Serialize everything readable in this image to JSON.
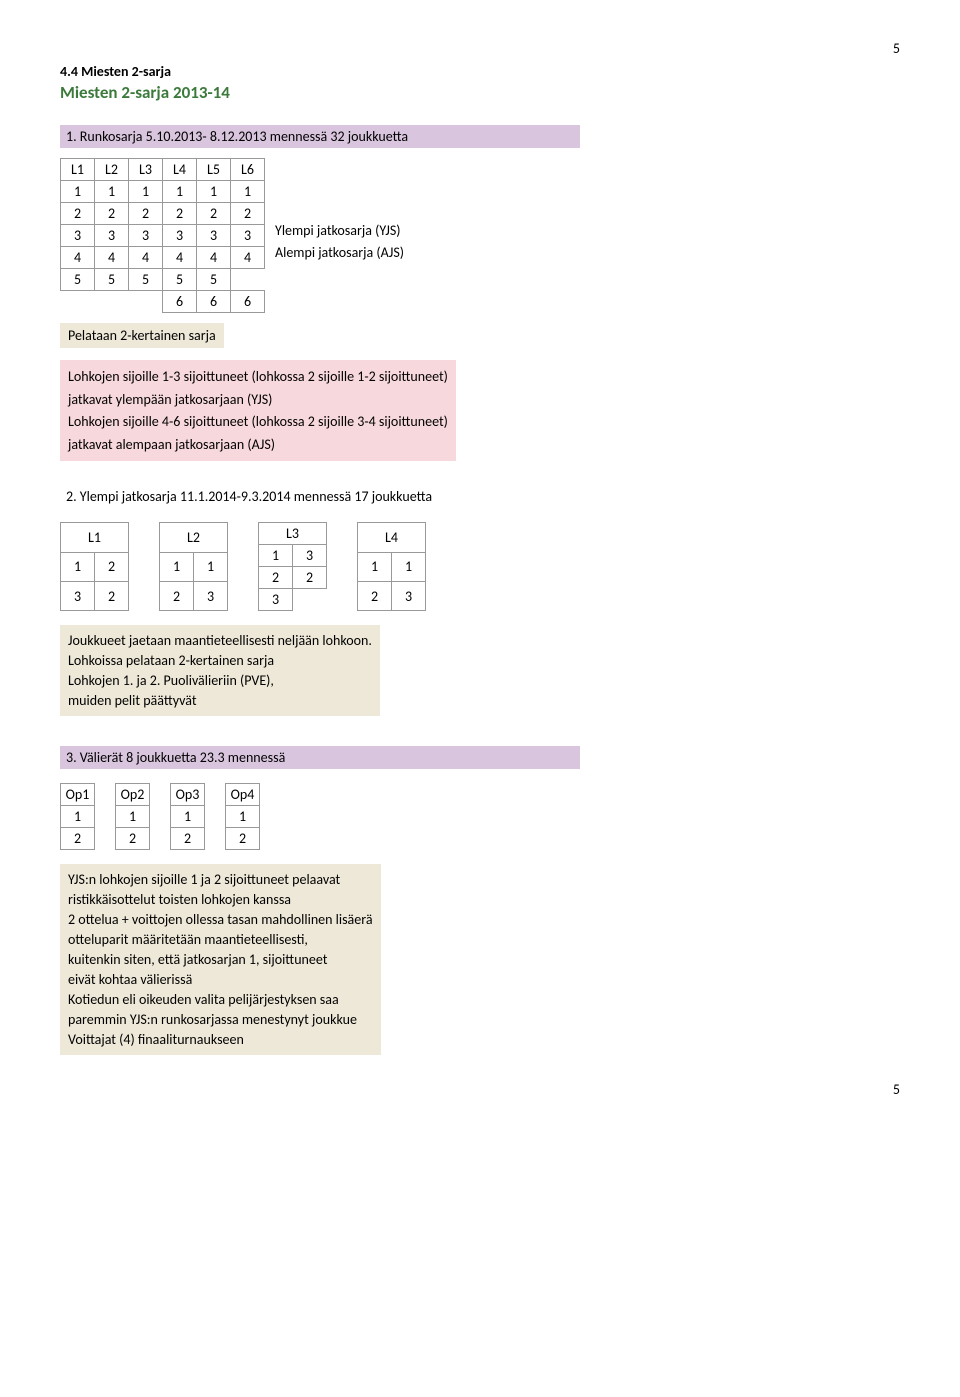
{
  "page_number_top": "5",
  "page_number_bottom": "5",
  "h1": "4.4 Miesten 2-sarja",
  "h2": "Miesten 2-sarja  2013-14",
  "section1": {
    "title": "1. Runkosarja 5.10.2013- 8.12.2013 mennessä 32 joukkuetta",
    "headers": [
      "L1",
      "L2",
      "L3",
      "L4",
      "L5",
      "L6"
    ],
    "rows": [
      [
        "1",
        "1",
        "1",
        "1",
        "1",
        "1"
      ],
      [
        "2",
        "2",
        "2",
        "2",
        "2",
        "2"
      ],
      [
        "3",
        "3",
        "3",
        "3",
        "3",
        "3"
      ],
      [
        "4",
        "4",
        "4",
        "4",
        "4",
        "4"
      ],
      [
        "5",
        "5",
        "5",
        "5",
        "5",
        ""
      ],
      [
        "",
        "",
        "",
        "6",
        "6",
        "6"
      ]
    ],
    "side": [
      "",
      "",
      "Ylempi jatkosarja (YJS)",
      "Alempi jatkosarja (AJS)",
      "",
      ""
    ],
    "beige": "Pelataan 2-kertainen sarja",
    "pink": [
      "Lohkojen sijoille 1-3 sijoittuneet (lohkossa 2 sijoille 1-2 sijoittuneet)",
      "jatkavat ylempään jatkosarjaan (YJS)",
      "Lohkojen sijoille 4-6 sijoittuneet (lohkossa 2 sijoille 3-4 sijoittuneet)",
      "jatkavat alempaan jatkosarjaan (AJS)"
    ]
  },
  "section2": {
    "title": "2. Ylempi jatkosarja 11.1.2014-9.3.2014 mennessä 17 joukkuetta",
    "tables": [
      {
        "header": "L1",
        "rows": [
          [
            "1",
            "2"
          ],
          [
            "3",
            "2"
          ]
        ],
        "extra": null
      },
      {
        "header": "L2",
        "rows": [
          [
            "1",
            "1"
          ],
          [
            "2",
            "3"
          ]
        ],
        "extra": null
      },
      {
        "header": "L3",
        "rows": [
          [
            "1",
            "3"
          ],
          [
            "2",
            "2"
          ]
        ],
        "extra": "3"
      },
      {
        "header": "L4",
        "rows": [
          [
            "1",
            "1"
          ],
          [
            "2",
            "3"
          ]
        ],
        "extra": null
      }
    ],
    "beige": [
      "Joukkueet jaetaan maantieteellisesti neljään lohkoon.",
      "Lohkoissa pelataan 2-kertainen sarja",
      "Lohkojen 1. ja 2. Puolivälieriin (PVE),",
      "muiden pelit päättyvät"
    ]
  },
  "section3": {
    "title": "3. Välierät  8 joukkuetta 23.3 mennessä",
    "tables": [
      {
        "header": "Op1",
        "rows": [
          [
            "1"
          ],
          [
            "2"
          ]
        ]
      },
      {
        "header": "Op2",
        "rows": [
          [
            "1"
          ],
          [
            "2"
          ]
        ]
      },
      {
        "header": "Op3",
        "rows": [
          [
            "1"
          ],
          [
            "2"
          ]
        ]
      },
      {
        "header": "Op4",
        "rows": [
          [
            "1"
          ],
          [
            "2"
          ]
        ]
      }
    ],
    "beige": [
      "YJS:n lohkojen sijoille 1 ja 2 sijoittuneet pelaavat",
      "ristikkäisottelut toisten lohkojen kanssa",
      "2 ottelua + voittojen ollessa tasan mahdollinen lisäerä",
      "otteluparit määritetään maantieteellisesti,",
      "kuitenkin siten, että jatkosarjan 1, sijoittuneet",
      "eivät kohtaa välierissä",
      "Kotiedun eli oikeuden valita pelijärjestyksen saa",
      "paremmin YJS:n runkosarjassa menestynyt joukkue",
      "Voittajat (4) finaaliturnaukseen"
    ]
  },
  "colors": {
    "bar_plum": "#d9c5dd",
    "beige": "#eee8d8",
    "pink": "#f7d8dc",
    "yellow": "#ffff00",
    "green": "#00b050",
    "heading_green": "#3c7a3c",
    "grid_border": "#999999"
  }
}
